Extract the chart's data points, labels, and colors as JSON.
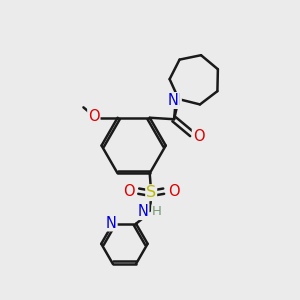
{
  "bg": "#ebebeb",
  "bc": "#1a1a1a",
  "N_color": "#0000dd",
  "O_color": "#dd0000",
  "S_color": "#bbbb00",
  "H_color": "#779977",
  "lw": 1.8,
  "fs": 9.5,
  "xlim": [
    0,
    10
  ],
  "ylim": [
    0,
    10
  ]
}
